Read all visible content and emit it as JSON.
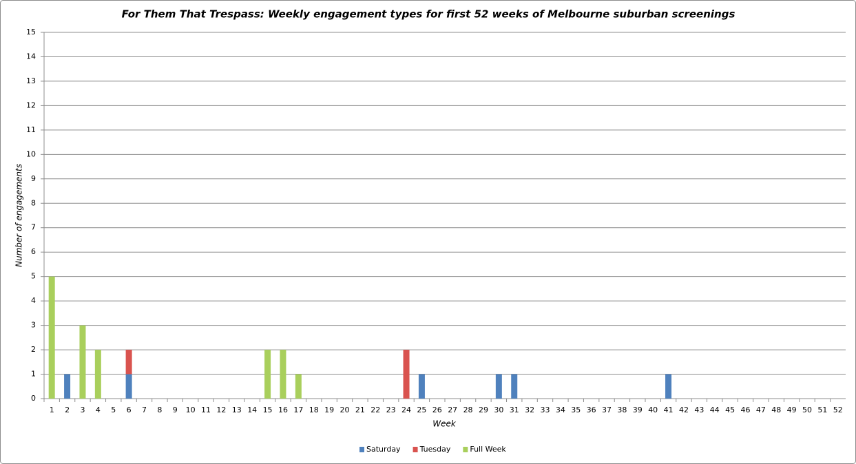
{
  "chart_data": {
    "type": "bar",
    "stacked": true,
    "title": "For Them That Trespass: Weekly engagement types for first 52 weeks of Melbourne suburban screenings",
    "x_label": "Week",
    "y_label": "Number of engagements",
    "categories": [
      "1",
      "2",
      "3",
      "4",
      "5",
      "6",
      "7",
      "8",
      "9",
      "10",
      "11",
      "12",
      "13",
      "14",
      "15",
      "16",
      "17",
      "18",
      "19",
      "20",
      "21",
      "22",
      "23",
      "24",
      "25",
      "26",
      "27",
      "28",
      "29",
      "30",
      "31",
      "32",
      "33",
      "34",
      "35",
      "36",
      "37",
      "38",
      "39",
      "40",
      "41",
      "42",
      "43",
      "44",
      "45",
      "46",
      "47",
      "48",
      "49",
      "50",
      "51",
      "52"
    ],
    "series": [
      {
        "name": "Saturday",
        "color": "#4f81bd",
        "values": [
          0,
          1,
          0,
          0,
          0,
          1,
          0,
          0,
          0,
          0,
          0,
          0,
          0,
          0,
          0,
          0,
          0,
          0,
          0,
          0,
          0,
          0,
          0,
          0,
          1,
          0,
          0,
          0,
          0,
          1,
          1,
          0,
          0,
          0,
          0,
          0,
          0,
          0,
          0,
          0,
          1,
          0,
          0,
          0,
          0,
          0,
          0,
          0,
          0,
          0,
          0,
          0
        ]
      },
      {
        "name": "Tuesday",
        "color": "#d9534f",
        "values": [
          0,
          0,
          0,
          0,
          0,
          1,
          0,
          0,
          0,
          0,
          0,
          0,
          0,
          0,
          0,
          0,
          0,
          0,
          0,
          0,
          0,
          0,
          0,
          2,
          0,
          0,
          0,
          0,
          0,
          0,
          0,
          0,
          0,
          0,
          0,
          0,
          0,
          0,
          0,
          0,
          0,
          0,
          0,
          0,
          0,
          0,
          0,
          0,
          0,
          0,
          0,
          0
        ]
      },
      {
        "name": "Full Week",
        "color": "#a9cf5c",
        "values": [
          5,
          0,
          3,
          2,
          0,
          0,
          0,
          0,
          0,
          0,
          0,
          0,
          0,
          0,
          2,
          2,
          1,
          0,
          0,
          0,
          0,
          0,
          0,
          0,
          0,
          0,
          0,
          0,
          0,
          0,
          0,
          0,
          0,
          0,
          0,
          0,
          0,
          0,
          0,
          0,
          0,
          0,
          0,
          0,
          0,
          0,
          0,
          0,
          0,
          0,
          0,
          0
        ]
      }
    ],
    "ylim": [
      0,
      15
    ],
    "yticks": [
      0,
      1,
      2,
      3,
      4,
      5,
      6,
      7,
      8,
      9,
      10,
      11,
      12,
      13,
      14,
      15
    ],
    "grid": true,
    "legend": "bottom"
  }
}
